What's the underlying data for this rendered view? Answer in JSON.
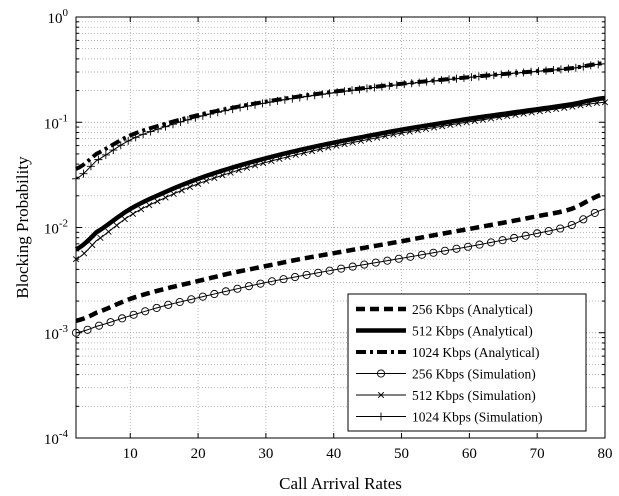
{
  "chart_data": {
    "type": "line",
    "xlabel": "Call Arrival Rates",
    "ylabel": "Blocking Probability",
    "xlim": [
      2,
      80
    ],
    "ylim": [
      0.0001,
      1
    ],
    "y_scale": "log",
    "grid": true,
    "legend_position": "bottom-right",
    "x_ticks": [
      10,
      20,
      30,
      40,
      50,
      60,
      70,
      80
    ],
    "y_ticks": [
      {
        "value": 0.0001,
        "base": "10",
        "exp": "-4"
      },
      {
        "value": 0.001,
        "base": "10",
        "exp": "-3"
      },
      {
        "value": 0.01,
        "base": "10",
        "exp": "-2"
      },
      {
        "value": 0.1,
        "base": "10",
        "exp": "-1"
      },
      {
        "value": 1,
        "base": "10",
        "exp": "0"
      }
    ],
    "series": [
      {
        "name": "256 Kbps (Analytical)",
        "style": "dashed",
        "marker": "none",
        "color": "#000000",
        "x": [
          2,
          5,
          10,
          15,
          20,
          25,
          30,
          35,
          40,
          45,
          50,
          55,
          60,
          65,
          70,
          75,
          80
        ],
        "y": [
          0.0013,
          0.00155,
          0.0021,
          0.0026,
          0.0031,
          0.0037,
          0.0043,
          0.005,
          0.0057,
          0.0065,
          0.0074,
          0.0085,
          0.0097,
          0.0111,
          0.0128,
          0.015,
          0.021
        ]
      },
      {
        "name": "512 Kbps (Analytical)",
        "style": "solid-thick",
        "marker": "none",
        "color": "#000000",
        "x": [
          2,
          5,
          10,
          15,
          20,
          25,
          30,
          35,
          40,
          45,
          50,
          55,
          60,
          65,
          70,
          75,
          80
        ],
        "y": [
          0.0062,
          0.009,
          0.015,
          0.0215,
          0.029,
          0.037,
          0.0455,
          0.0545,
          0.064,
          0.074,
          0.085,
          0.096,
          0.108,
          0.12,
          0.133,
          0.148,
          0.17
        ]
      },
      {
        "name": "1024 Kbps (Analytical)",
        "style": "dashdot-thick",
        "marker": "none",
        "color": "#000000",
        "x": [
          2,
          5,
          10,
          15,
          20,
          25,
          30,
          35,
          40,
          45,
          50,
          55,
          60,
          65,
          70,
          75,
          80
        ],
        "y": [
          0.036,
          0.05,
          0.075,
          0.096,
          0.117,
          0.137,
          0.157,
          0.176,
          0.195,
          0.213,
          0.232,
          0.25,
          0.268,
          0.287,
          0.306,
          0.326,
          0.365
        ]
      },
      {
        "name": "256 Kbps (Simulation)",
        "style": "solid",
        "marker": "circle",
        "color": "#000000",
        "x": [
          2,
          5,
          10,
          15,
          20,
          25,
          30,
          35,
          40,
          45,
          50,
          55,
          60,
          65,
          70,
          75,
          80
        ],
        "y": [
          0.001,
          0.00115,
          0.00145,
          0.0018,
          0.00215,
          0.00255,
          0.003,
          0.00345,
          0.00395,
          0.0045,
          0.0051,
          0.0058,
          0.0066,
          0.0076,
          0.0088,
          0.0105,
          0.015
        ]
      },
      {
        "name": "512 Kbps (Simulation)",
        "style": "solid",
        "marker": "x",
        "color": "#000000",
        "x": [
          2,
          5,
          10,
          15,
          20,
          25,
          30,
          35,
          40,
          45,
          50,
          55,
          60,
          65,
          70,
          75,
          80
        ],
        "y": [
          0.005,
          0.0075,
          0.013,
          0.019,
          0.026,
          0.0335,
          0.0415,
          0.05,
          0.059,
          0.0685,
          0.079,
          0.0895,
          0.101,
          0.113,
          0.126,
          0.14,
          0.155
        ]
      },
      {
        "name": "1024 Kbps (Simulation)",
        "style": "solid",
        "marker": "plus",
        "color": "#000000",
        "x": [
          2,
          5,
          10,
          15,
          20,
          25,
          30,
          35,
          40,
          45,
          50,
          55,
          60,
          65,
          70,
          75,
          80
        ],
        "y": [
          0.029,
          0.043,
          0.068,
          0.09,
          0.112,
          0.133,
          0.153,
          0.172,
          0.191,
          0.21,
          0.229,
          0.248,
          0.267,
          0.286,
          0.305,
          0.325,
          0.36
        ]
      }
    ]
  }
}
